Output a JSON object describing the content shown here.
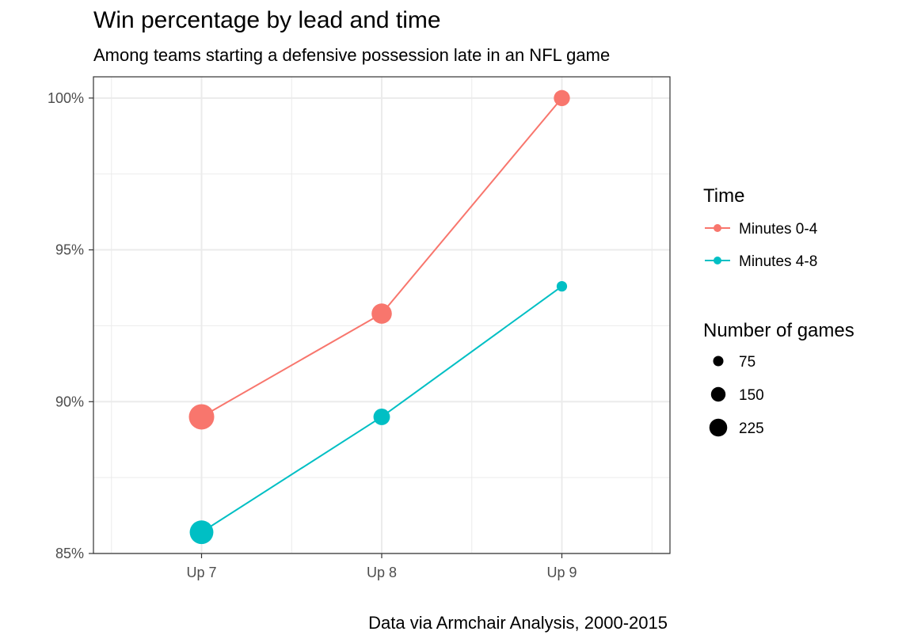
{
  "chart_data": {
    "type": "line",
    "title": "Win percentage by lead and time",
    "subtitle": "Among teams starting a defensive possession late in an NFL game",
    "caption": "Data via Armchair Analysis, 2000-2015",
    "xlabel": "",
    "ylabel": "",
    "categories": [
      "Up 7",
      "Up 8",
      "Up 9"
    ],
    "ylim": [
      85,
      100.7
    ],
    "yticks": [
      85,
      90,
      95,
      100
    ],
    "ytick_labels": [
      "85%",
      "90%",
      "95%",
      "100%"
    ],
    "grid": true,
    "series": [
      {
        "name": "Minutes 0-4",
        "color": "#F8766D",
        "values": [
          89.5,
          92.9,
          100.0
        ],
        "games": [
          235,
          150,
          95
        ]
      },
      {
        "name": "Minutes 4-8",
        "color": "#00BFC4",
        "values": [
          85.7,
          89.5,
          93.8
        ],
        "games": [
          205,
          100,
          40
        ]
      }
    ],
    "legend": {
      "position": "right",
      "color_title": "Time",
      "size_title": "Number of games",
      "size_values": [
        75,
        150,
        225
      ],
      "size_labels": [
        "75",
        "150",
        "225"
      ]
    }
  }
}
